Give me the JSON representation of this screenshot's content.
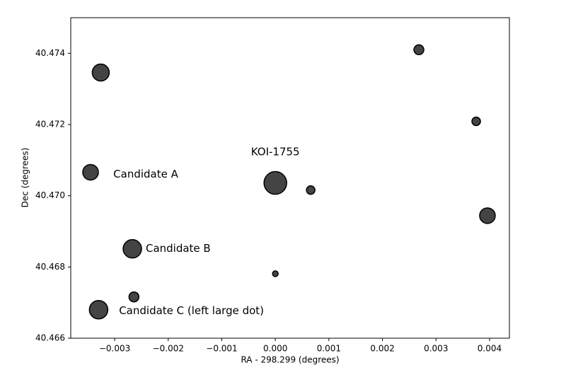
{
  "chart_data": {
    "type": "scatter",
    "xlabel": "RA - 298.299 (degrees)",
    "ylabel": "Dec (degrees)",
    "color": "#444444",
    "x": [
      -0.00326,
      0.00268,
      0.00375,
      -0.00345,
      0.0,
      0.00066,
      0.00396,
      -0.00267,
      0.0,
      -0.00264,
      -0.0033
    ],
    "values": [
      40.47346,
      40.4741,
      40.47209,
      40.47066,
      40.47036,
      40.47016,
      40.46944,
      40.46851,
      40.46781,
      40.46716,
      40.4668
    ],
    "sizes": [
      12,
      7,
      6,
      11,
      16,
      6,
      11,
      13,
      4,
      7,
      13
    ],
    "xlim": [
      -0.00382,
      0.00437
    ],
    "ylim": [
      40.466,
      40.475
    ],
    "xticks": [
      {
        "value": -0.003,
        "label": "−0.003"
      },
      {
        "value": -0.002,
        "label": "−0.002"
      },
      {
        "value": -0.001,
        "label": "−0.001"
      },
      {
        "value": 0.0,
        "label": "0.000"
      },
      0.001,
      0.002,
      0.003,
      0.004
    ],
    "yticks": [
      40.466,
      40.468,
      {
        "value": 40.47,
        "label": "40.470"
      },
      40.472,
      40.474
    ],
    "annotations": [
      {
        "text": "KOI-1755",
        "x": 0.0,
        "y": 40.47123,
        "align": "middle"
      },
      {
        "text": "Candidate A",
        "x": -0.003025,
        "y": 40.4706,
        "align": "start"
      },
      {
        "text": "Candidate B",
        "x": -0.00242,
        "y": 40.46851,
        "align": "start"
      },
      {
        "text": "Candidate C (left large dot)",
        "x": -0.002919,
        "y": 40.46676,
        "align": "start"
      }
    ]
  }
}
